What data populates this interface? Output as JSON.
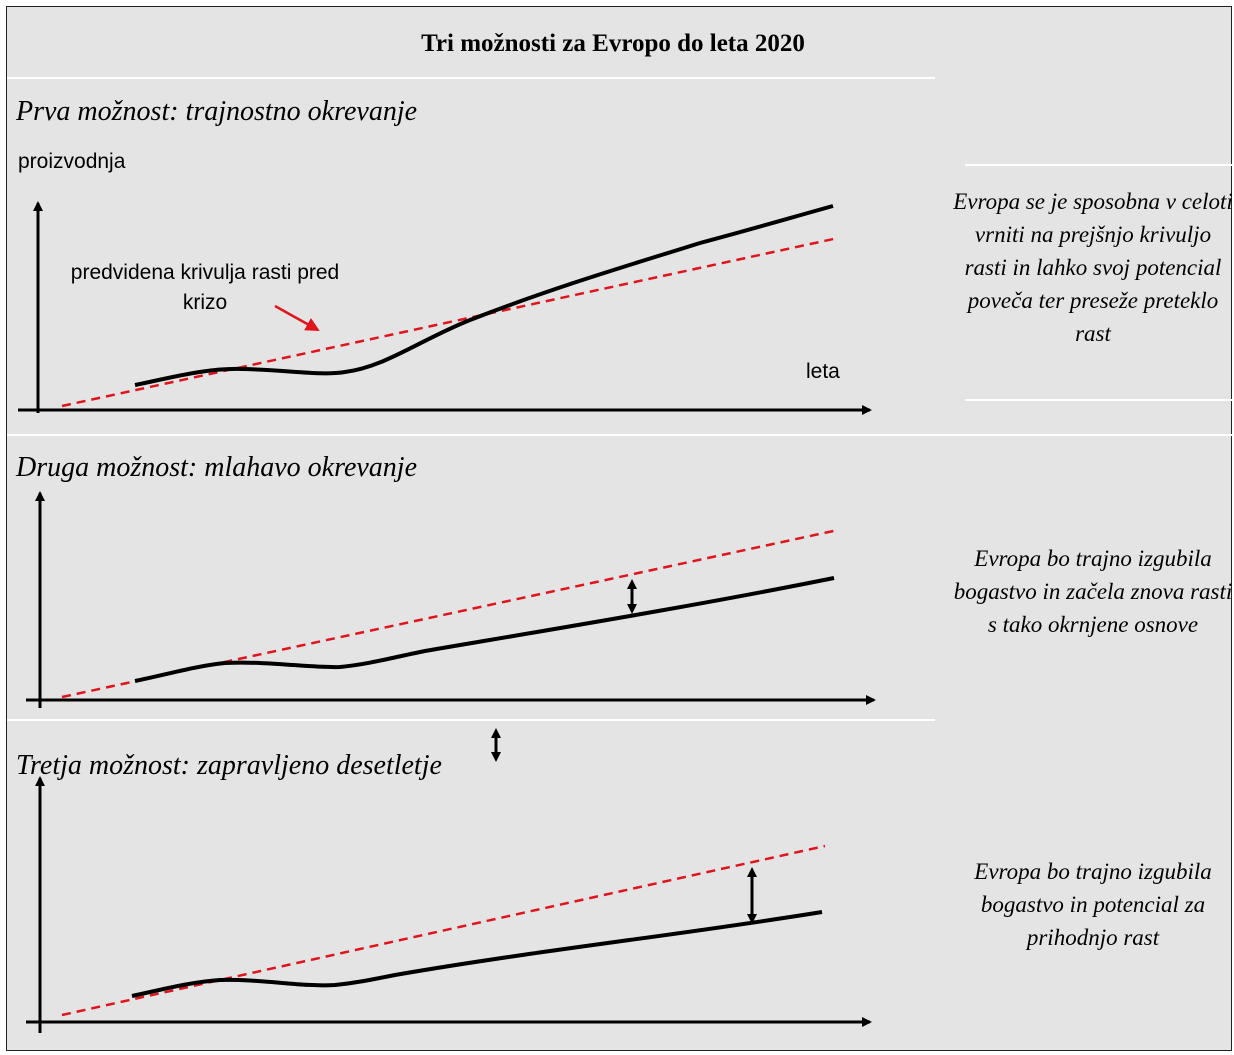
{
  "title": "Tri možnosti za Evropo do leta 2020",
  "colors": {
    "background": "#e4e4e4",
    "actual_line": "#000000",
    "trend_line": "#e0141c",
    "separator": "#ffffff"
  },
  "scenarios": [
    {
      "heading": "Prva možnost: trajnostno okrevanje",
      "y_axis_label": "proizvodnja",
      "x_axis_label": "leta",
      "trend_annotation": "predvidena krivulja rasti pred krizo",
      "description": "Evropa se je sposobna v celoti vrniti na prejšnjo krivuljo rasti in lahko svoj potencial poveča ter preseže preteklo rast"
    },
    {
      "heading": "Druga možnost: mlahavo okrevanje",
      "description": "Evropa bo trajno izgubila bogastvo in začela znova rasti s tako okrnjene osnove"
    },
    {
      "heading": "Tretja možnost: zapravljeno desetletje",
      "description": "Evropa bo trajno izgubila bogastvo in potencial za prihodnjo rast"
    }
  ]
}
